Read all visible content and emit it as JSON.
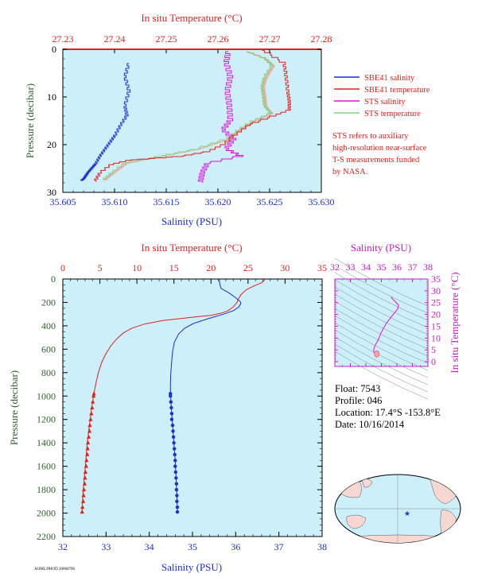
{
  "colors": {
    "salinity": "#1b2fd0",
    "temperature": "#e0201a",
    "sts_salinity": "#e010e0",
    "sts_temperature": "#7fd37f",
    "sts_temperature_fill": "#f4a8a0",
    "plot_bg": "#cdeffa",
    "ylabel": "#2f5f2f",
    "ts_axis": "#c020c0"
  },
  "chart_data": [
    {
      "type": "line",
      "top_axis_title": "In situ Temperature (°C)",
      "bottom_axis_title": "Salinity (PSU)",
      "ylabel": "Pressure (decibar)",
      "salinity_ticks": [
        "35.605",
        "35.610",
        "35.615",
        "35.620",
        "35.625",
        "35.630"
      ],
      "temperature_ticks": [
        "27.23",
        "27.24",
        "27.25",
        "27.26",
        "27.27",
        "27.28"
      ],
      "pressure_ticks": [
        "0",
        "10",
        "20",
        "30"
      ],
      "xlim_salinity": [
        35.605,
        35.63
      ],
      "xlim_temperature": [
        27.23,
        27.28
      ],
      "ylim_pressure": [
        0,
        30
      ],
      "legend": [
        "SBE41 salinity",
        "SBE41 temperature",
        "STS salinity",
        "STS temperature"
      ],
      "note": [
        "STS refers to auxiliary",
        "high-resolution near-surface",
        "T-S measurements funded",
        "by NASA."
      ],
      "series": [
        {
          "name": "SBE41 salinity",
          "axis": "salinity",
          "points": [
            [
              35.6114,
              3
            ],
            [
              35.611,
              6
            ],
            [
              35.6114,
              9
            ],
            [
              35.611,
              12
            ],
            [
              35.6112,
              14
            ],
            [
              35.6106,
              16
            ],
            [
              35.6101,
              18
            ],
            [
              35.6096,
              19.5
            ],
            [
              35.6091,
              21
            ],
            [
              35.6086,
              22.5
            ],
            [
              35.6082,
              24
            ],
            [
              35.6078,
              25
            ],
            [
              35.6074,
              26
            ],
            [
              35.6071,
              27
            ],
            [
              35.6068,
              27.6
            ]
          ]
        },
        {
          "name": "SBE41 temperature",
          "axis": "temperature",
          "points": [
            [
              27.2685,
              0.2
            ],
            [
              27.2728,
              3.2
            ],
            [
              27.2732,
              6
            ],
            [
              27.2735,
              9
            ],
            [
              27.2738,
              11
            ],
            [
              27.2738,
              12.8
            ],
            [
              27.271,
              14
            ],
            [
              27.266,
              16
            ],
            [
              27.2635,
              18
            ],
            [
              27.2612,
              20
            ],
            [
              27.2582,
              21.5
            ],
            [
              27.253,
              22.5
            ],
            [
              27.243,
              23.3
            ],
            [
              27.2395,
              24.2
            ],
            [
              27.2372,
              26
            ],
            [
              27.2362,
              27.8
            ]
          ]
        },
        {
          "name": "STS salinity",
          "axis": "salinity",
          "points": [
            [
              35.621,
              0.5
            ],
            [
              35.6208,
              3
            ],
            [
              35.6212,
              6
            ],
            [
              35.6209,
              9
            ],
            [
              35.6211,
              12
            ],
            [
              35.6212,
              15
            ],
            [
              35.6205,
              17
            ],
            [
              35.6215,
              19
            ],
            [
              35.6208,
              21
            ],
            [
              35.6222,
              22.5
            ],
            [
              35.619,
              24
            ],
            [
              35.6185,
              26
            ],
            [
              35.6183,
              28
            ]
          ]
        },
        {
          "name": "STS temperature",
          "axis": "temperature",
          "points": [
            [
              27.2655,
              0.5
            ],
            [
              27.269,
              2
            ],
            [
              27.2705,
              3.5
            ],
            [
              27.269,
              6
            ],
            [
              27.2685,
              8
            ],
            [
              27.2688,
              10
            ],
            [
              27.269,
              12
            ],
            [
              27.2702,
              13.5
            ],
            [
              27.267,
              15
            ],
            [
              27.264,
              17
            ],
            [
              27.2615,
              19
            ],
            [
              27.256,
              21
            ],
            [
              27.249,
              22.5
            ],
            [
              27.242,
              24
            ],
            [
              27.2395,
              26
            ],
            [
              27.2378,
              27.5
            ]
          ]
        }
      ]
    },
    {
      "type": "line",
      "top_axis_title": "In situ Temperature (°C)",
      "bottom_axis_title": "Salinity (PSU)",
      "ylabel": "Pressure (decibar)",
      "temperature_ticks": [
        "0",
        "5",
        "10",
        "15",
        "20",
        "25",
        "30",
        "35"
      ],
      "salinity_ticks": [
        "32",
        "33",
        "34",
        "35",
        "36",
        "37",
        "38"
      ],
      "pressure_ticks": [
        "0",
        "200",
        "400",
        "600",
        "800",
        "1000",
        "1200",
        "1400",
        "1600",
        "1800",
        "2000",
        "2200"
      ],
      "xlim_temperature": [
        0,
        35
      ],
      "xlim_salinity": [
        32,
        38
      ],
      "ylim_pressure": [
        0,
        2200
      ],
      "series": [
        {
          "name": "Temperature",
          "axis": "temperature",
          "points": [
            [
              27.3,
              0
            ],
            [
              27.2,
              10
            ],
            [
              26.9,
              30
            ],
            [
              25.8,
              60
            ],
            [
              24.8,
              90
            ],
            [
              24.1,
              130
            ],
            [
              23.7,
              170
            ],
            [
              23.5,
              200
            ],
            [
              23.0,
              240
            ],
            [
              22.3,
              270
            ],
            [
              21.5,
              290
            ],
            [
              20.0,
              310
            ],
            [
              17.0,
              330
            ],
            [
              13.5,
              355
            ],
            [
              11.0,
              385
            ],
            [
              9.3,
              420
            ],
            [
              8.2,
              460
            ],
            [
              7.3,
              510
            ],
            [
              6.5,
              570
            ],
            [
              5.8,
              640
            ],
            [
              5.2,
              720
            ],
            [
              4.8,
              800
            ],
            [
              4.5,
              880
            ],
            [
              4.2,
              980
            ],
            [
              3.9,
              1100
            ],
            [
              3.6,
              1250
            ],
            [
              3.3,
              1400
            ],
            [
              3.1,
              1550
            ],
            [
              2.9,
              1700
            ],
            [
              2.7,
              1850
            ],
            [
              2.6,
              1990
            ]
          ]
        },
        {
          "name": "Salinity",
          "axis": "salinity",
          "points": [
            [
              35.62,
              0
            ],
            [
              35.63,
              40
            ],
            [
              35.66,
              80
            ],
            [
              35.85,
              120
            ],
            [
              36.0,
              160
            ],
            [
              36.1,
              190
            ],
            [
              36.12,
              210
            ],
            [
              36.07,
              240
            ],
            [
              35.95,
              270
            ],
            [
              35.72,
              300
            ],
            [
              35.35,
              340
            ],
            [
              35.02,
              380
            ],
            [
              34.82,
              420
            ],
            [
              34.68,
              470
            ],
            [
              34.58,
              540
            ],
            [
              34.54,
              620
            ],
            [
              34.52,
              700
            ],
            [
              34.5,
              800
            ],
            [
              34.49,
              900
            ],
            [
              34.49,
              980
            ],
            [
              34.51,
              1100
            ],
            [
              34.54,
              1250
            ],
            [
              34.57,
              1400
            ],
            [
              34.6,
              1550
            ],
            [
              34.62,
              1700
            ],
            [
              34.64,
              1850
            ],
            [
              34.65,
              1990
            ]
          ]
        }
      ],
      "deep_samples": {
        "pressures": [
          980,
          1000,
          1050,
          1100,
          1150,
          1200,
          1250,
          1300,
          1350,
          1400,
          1450,
          1500,
          1550,
          1600,
          1650,
          1700,
          1750,
          1800,
          1850,
          1900,
          1950,
          1990
        ],
        "temperature": [
          4.2,
          4.15,
          4.05,
          3.95,
          3.85,
          3.75,
          3.65,
          3.6,
          3.5,
          3.4,
          3.35,
          3.3,
          3.2,
          3.15,
          3.05,
          3.0,
          2.95,
          2.85,
          2.8,
          2.75,
          2.65,
          2.6
        ],
        "salinity": [
          34.49,
          34.49,
          34.5,
          34.51,
          34.52,
          34.52,
          34.54,
          34.55,
          34.56,
          34.57,
          34.58,
          34.59,
          34.6,
          34.6,
          34.61,
          34.62,
          34.63,
          34.63,
          34.64,
          34.64,
          34.65,
          34.65
        ]
      }
    },
    {
      "type": "scatter",
      "top_axis_title": "Salinity (PSU)",
      "right_axis_title": "In situ Temperature (°C)",
      "salinity_ticks": [
        "32",
        "33",
        "34",
        "35",
        "36",
        "37",
        "38"
      ],
      "temperature_ticks": [
        "0",
        "5",
        "10",
        "15",
        "20",
        "25",
        "30",
        "35"
      ],
      "xlim_salinity": [
        32,
        38
      ],
      "ylim_temperature": [
        -2,
        35
      ],
      "ts_curve": [
        [
          35.62,
          27.3
        ],
        [
          36.1,
          24.0
        ],
        [
          36.05,
          22.3
        ],
        [
          35.7,
          19.5
        ],
        [
          35.3,
          16.0
        ],
        [
          35.0,
          12.5
        ],
        [
          34.78,
          9.0
        ],
        [
          34.6,
          7.0
        ],
        [
          34.52,
          5.5
        ],
        [
          34.5,
          4.3
        ],
        [
          34.55,
          3.6
        ],
        [
          34.6,
          3.1
        ],
        [
          34.65,
          2.6
        ]
      ]
    }
  ],
  "info": {
    "float": "Float:  7543",
    "profile": "Profile:  046",
    "location": "Location:  17.4°S  -153.8°E",
    "date": "Date:  10/16/2014"
  },
  "footer_text": "AOML/PHOD 20060706"
}
